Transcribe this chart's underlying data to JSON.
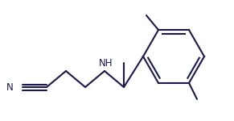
{
  "bg_color": "#ffffff",
  "line_color": "#1a1a4a",
  "font_size": 8.5,
  "label_color": "#1a1a4a",
  "figsize": [
    2.91,
    1.5
  ],
  "dpi": 100
}
